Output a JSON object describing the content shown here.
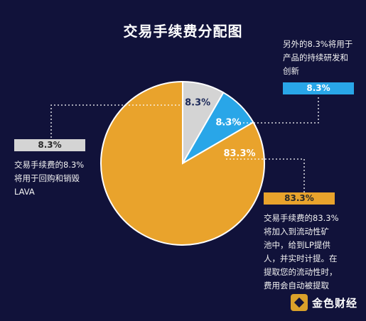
{
  "chart_data": {
    "type": "pie",
    "title": "交易手续费分配图",
    "slices": [
      {
        "label": "8.3%",
        "value": 8.3,
        "color": "#d4d4d4",
        "legend_label": "8.3%",
        "description": [
          "交易手续费的8.3%",
          "将用于回购和销毁",
          "LAVA"
        ]
      },
      {
        "label": "8.3%",
        "value": 8.3,
        "color": "#29a6e8",
        "legend_label": "8.3%",
        "description": [
          "另外的8.3%将用于",
          "产品的持续研发和",
          "创新"
        ]
      },
      {
        "label": "83.3%",
        "value": 83.3,
        "color": "#e9a32c",
        "legend_label": "83.3%",
        "description": [
          "交易手续费的83.3%",
          "将加入到流动性矿",
          "池中，给到LP提供",
          "人，并实时计提。在",
          "提取您的流动性时，",
          "费用会自动被提取"
        ]
      }
    ]
  },
  "watermark": {
    "text": "金色财经",
    "icon": "jinse-logo-icon"
  }
}
